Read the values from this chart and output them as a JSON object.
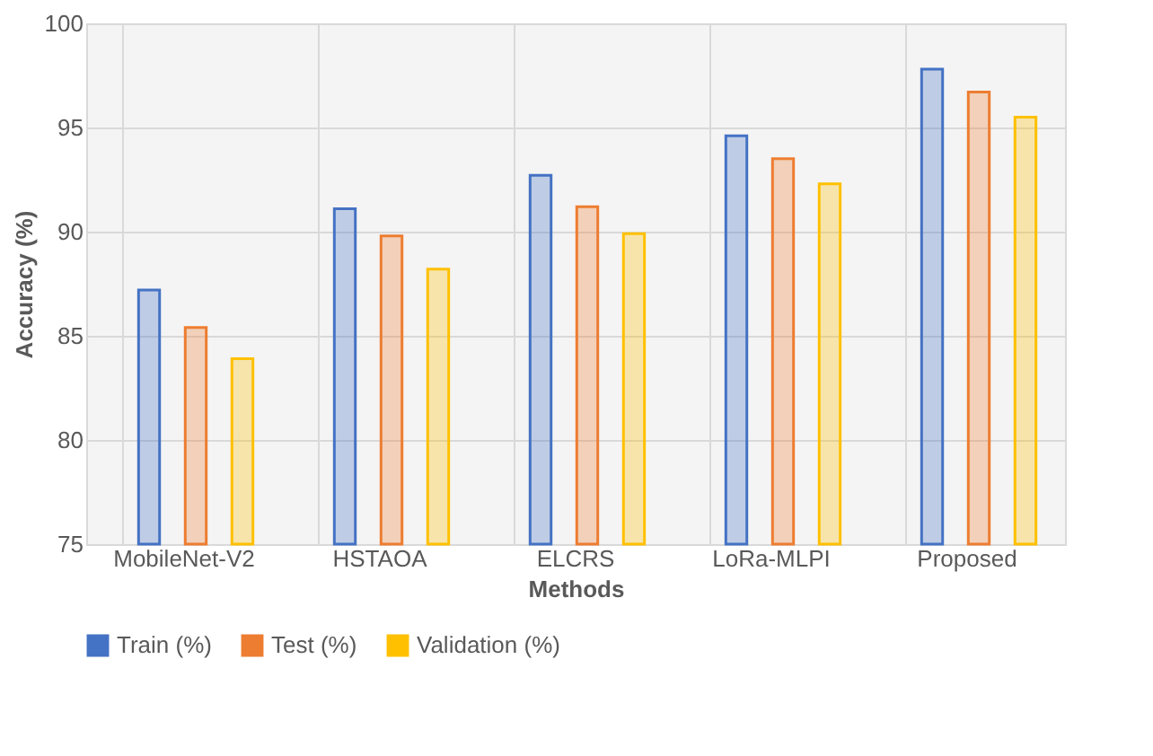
{
  "chart_data": {
    "type": "bar",
    "xlabel": "Methods",
    "ylabel": "Accuracy (%)",
    "categories": [
      "MobileNet-V2",
      "HSTAOA",
      "ELCRS",
      "LoRa-MLPI",
      "Proposed"
    ],
    "series": [
      {
        "name": "Train (%)",
        "color": "#4472c4",
        "values": [
          87.2,
          91.1,
          92.7,
          94.6,
          97.8
        ]
      },
      {
        "name": "Test (%)",
        "color": "#ed7d31",
        "values": [
          85.4,
          89.8,
          91.2,
          93.5,
          96.7
        ]
      },
      {
        "name": "Validation (%)",
        "color": "#ffc000",
        "values": [
          83.9,
          88.2,
          89.9,
          92.3,
          95.5
        ]
      }
    ],
    "ylim": [
      75,
      100
    ],
    "yticks": [
      75,
      80,
      85,
      90,
      95,
      100
    ],
    "grid": true,
    "legend": "bottom"
  }
}
